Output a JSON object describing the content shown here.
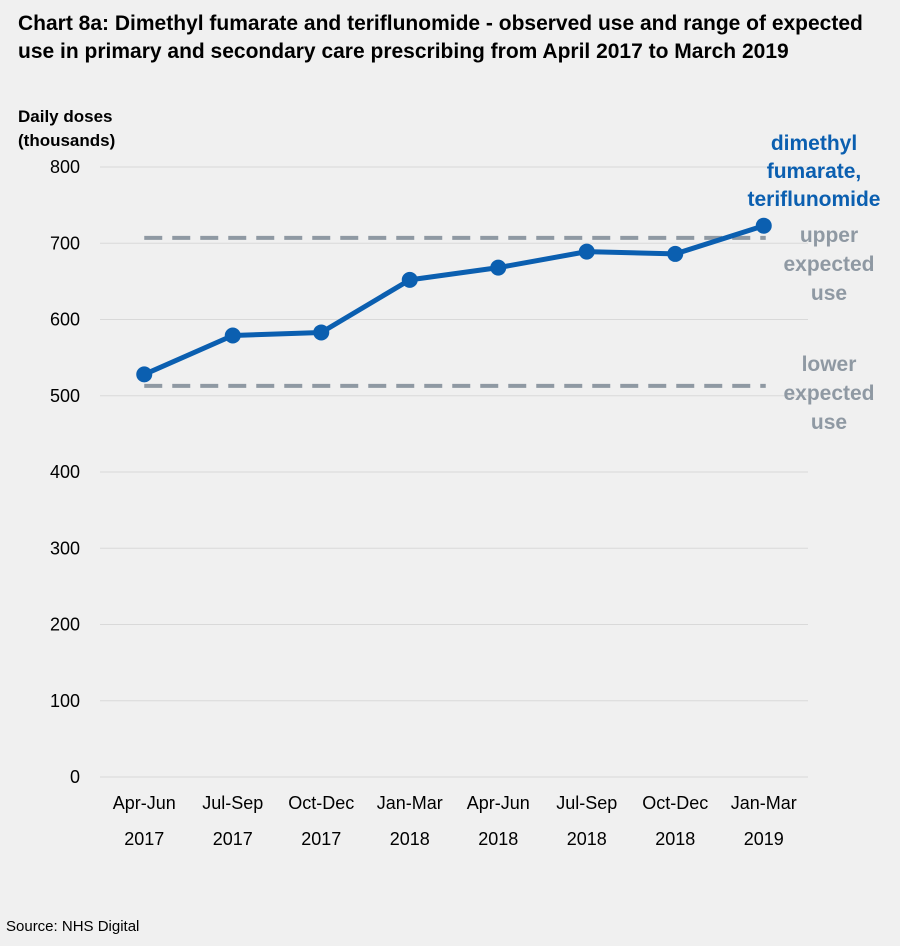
{
  "title": "Chart 8a: Dimethyl fumarate and teriflunomide - observed use and range of expected use in primary and secondary care prescribing from April 2017 to March 2019",
  "source": "Source: NHS Digital",
  "colors": {
    "series": "#0b5fb0",
    "reference": "#8f99a3",
    "grid": "#d9d9d9",
    "background": "#f0f0f0"
  },
  "chart_data": {
    "type": "line",
    "ylabel": [
      "Daily doses",
      "(thousands)"
    ],
    "xlabel": "",
    "ylim": [
      0,
      800
    ],
    "yticks": [
      0,
      100,
      200,
      300,
      400,
      500,
      600,
      700,
      800
    ],
    "grid": true,
    "categories": [
      [
        "Apr-Jun",
        "2017"
      ],
      [
        "Jul-Sep",
        "2017"
      ],
      [
        "Oct-Dec",
        "2017"
      ],
      [
        "Jan-Mar",
        "2018"
      ],
      [
        "Apr-Jun",
        "2018"
      ],
      [
        "Jul-Sep",
        "2018"
      ],
      [
        "Oct-Dec",
        "2018"
      ],
      [
        "Jan-Mar",
        "2019"
      ]
    ],
    "series": [
      {
        "name": [
          "dimethyl",
          "fumarate,",
          "teriflunomide"
        ],
        "values": [
          528,
          579,
          583,
          652,
          668,
          689,
          686,
          723
        ]
      }
    ],
    "reference_lines": [
      {
        "name": [
          "upper",
          "expected",
          "use"
        ],
        "value": 707,
        "style": "dashed"
      },
      {
        "name": [
          "lower",
          "expected",
          "use"
        ],
        "value": 513,
        "style": "dashed"
      }
    ]
  }
}
